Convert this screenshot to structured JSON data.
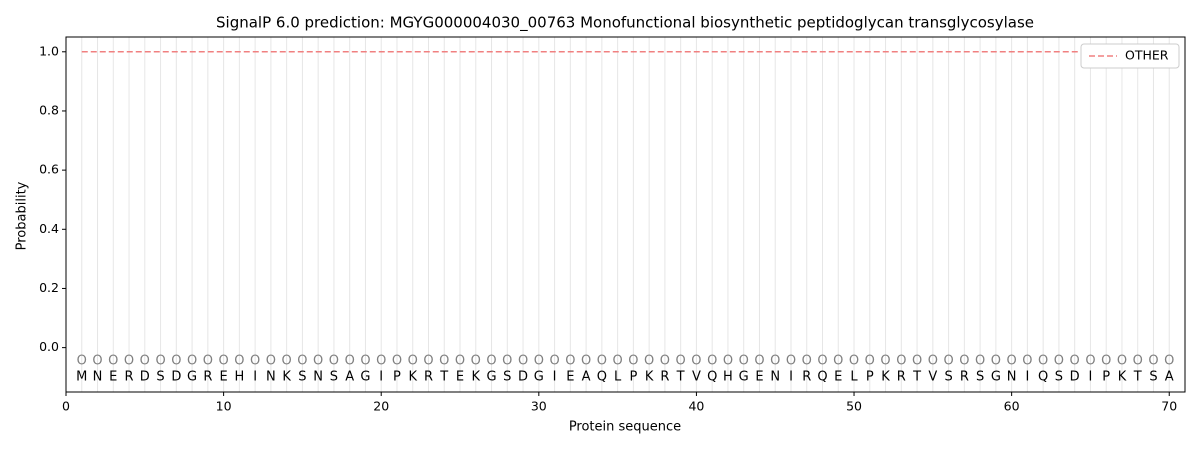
{
  "chart_data": {
    "type": "line",
    "title": "SignalP 6.0 prediction: MGYG000004030_00763 Monofunctional biosynthetic peptidoglycan transglycosylase",
    "x_label": "Protein sequence",
    "y_label": "Probability",
    "x": [
      1,
      2,
      3,
      4,
      5,
      6,
      7,
      8,
      9,
      10,
      11,
      12,
      13,
      14,
      15,
      16,
      17,
      18,
      19,
      20,
      21,
      22,
      23,
      24,
      25,
      26,
      27,
      28,
      29,
      30,
      31,
      32,
      33,
      34,
      35,
      36,
      37,
      38,
      39,
      40,
      41,
      42,
      43,
      44,
      45,
      46,
      47,
      48,
      49,
      50,
      51,
      52,
      53,
      54,
      55,
      56,
      57,
      58,
      59,
      60,
      61,
      62,
      63,
      64,
      65,
      66,
      67,
      68,
      69,
      70
    ],
    "residues": [
      "M",
      "N",
      "E",
      "R",
      "D",
      "S",
      "D",
      "G",
      "R",
      "E",
      "H",
      "I",
      "N",
      "K",
      "S",
      "N",
      "S",
      "A",
      "G",
      "I",
      "P",
      "K",
      "R",
      "T",
      "E",
      "K",
      "G",
      "S",
      "D",
      "G",
      "I",
      "E",
      "A",
      "Q",
      "L",
      "P",
      "K",
      "R",
      "T",
      "V",
      "Q",
      "H",
      "G",
      "E",
      "N",
      "I",
      "R",
      "Q",
      "E",
      "L",
      "P",
      "K",
      "R",
      "T",
      "V",
      "S",
      "R",
      "S",
      "G",
      "N",
      "I",
      "Q",
      "S",
      "D",
      "I",
      "P",
      "K",
      "T",
      "S",
      "A"
    ],
    "predicted_labels": [
      "O",
      "O",
      "O",
      "O",
      "O",
      "O",
      "O",
      "O",
      "O",
      "O",
      "O",
      "O",
      "O",
      "O",
      "O",
      "O",
      "O",
      "O",
      "O",
      "O",
      "O",
      "O",
      "O",
      "O",
      "O",
      "O",
      "O",
      "O",
      "O",
      "O",
      "O",
      "O",
      "O",
      "O",
      "O",
      "O",
      "O",
      "O",
      "O",
      "O",
      "O",
      "O",
      "O",
      "O",
      "O",
      "O",
      "O",
      "O",
      "O",
      "O",
      "O",
      "O",
      "O",
      "O",
      "O",
      "O",
      "O",
      "O",
      "O",
      "O",
      "O",
      "O",
      "O",
      "O",
      "O",
      "O",
      "O",
      "O",
      "O",
      "O"
    ],
    "series": [
      {
        "name": "OTHER",
        "color": "#f08080",
        "dashed": true,
        "values": [
          1,
          1,
          1,
          1,
          1,
          1,
          1,
          1,
          1,
          1,
          1,
          1,
          1,
          1,
          1,
          1,
          1,
          1,
          1,
          1,
          1,
          1,
          1,
          1,
          1,
          1,
          1,
          1,
          1,
          1,
          1,
          1,
          1,
          1,
          1,
          1,
          1,
          1,
          1,
          1,
          1,
          1,
          1,
          1,
          1,
          1,
          1,
          1,
          1,
          1,
          1,
          1,
          1,
          1,
          1,
          1,
          1,
          1,
          1,
          1,
          1,
          1,
          1,
          1,
          1,
          1,
          1,
          1,
          1,
          1
        ]
      }
    ],
    "xlim": [
      0,
      71
    ],
    "ylim": [
      -0.15,
      1.05
    ],
    "xticks": [
      0,
      10,
      20,
      30,
      40,
      50,
      60,
      70
    ],
    "yticks": [
      {
        "value": 0,
        "label": "0.0"
      },
      {
        "value": 0.2,
        "label": "0.2"
      },
      {
        "value": 0.4,
        "label": "0.4"
      },
      {
        "value": 0.6,
        "label": "0.6"
      },
      {
        "value": 0.8,
        "label": "0.8"
      },
      {
        "value": 1,
        "label": "1.0"
      }
    ],
    "legend": "upper right"
  }
}
